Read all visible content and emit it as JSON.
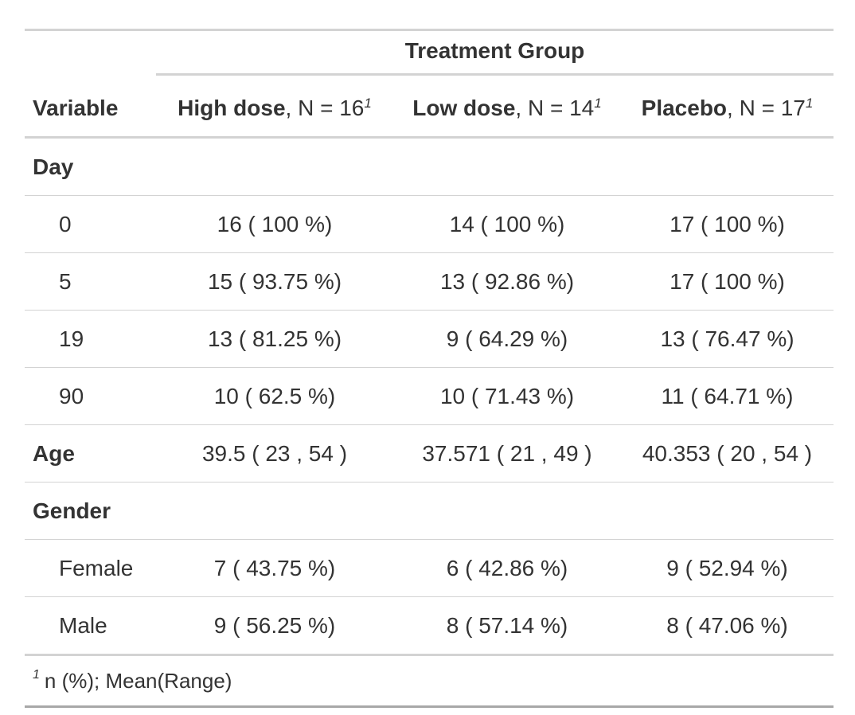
{
  "spanner": {
    "label": "Treatment Group"
  },
  "header": {
    "variable": "Variable",
    "columns": [
      {
        "name": "High dose",
        "n_text": ", N = 16",
        "footnote_mark": "1"
      },
      {
        "name": "Low dose",
        "n_text": ", N = 14",
        "footnote_mark": "1"
      },
      {
        "name": "Placebo",
        "n_text": ", N = 17",
        "footnote_mark": "1"
      }
    ]
  },
  "rows": [
    {
      "label": "Day",
      "group": true,
      "values": [
        "",
        "",
        ""
      ]
    },
    {
      "label": "0",
      "group": false,
      "values": [
        "16 ( 100 %)",
        "14 ( 100 %)",
        "17 ( 100 %)"
      ]
    },
    {
      "label": "5",
      "group": false,
      "values": [
        "15 ( 93.75 %)",
        "13 ( 92.86 %)",
        "17 ( 100 %)"
      ]
    },
    {
      "label": "19",
      "group": false,
      "values": [
        "13 ( 81.25 %)",
        "9 ( 64.29 %)",
        "13 ( 76.47 %)"
      ]
    },
    {
      "label": "90",
      "group": false,
      "values": [
        "10 ( 62.5 %)",
        "10 ( 71.43 %)",
        "11 ( 64.71 %)"
      ]
    },
    {
      "label": "Age",
      "group": true,
      "values": [
        "39.5 ( 23 , 54 )",
        "37.571 ( 21 , 49 )",
        "40.353 ( 20 , 54 )"
      ]
    },
    {
      "label": "Gender",
      "group": true,
      "values": [
        "",
        "",
        ""
      ]
    },
    {
      "label": "Female",
      "group": false,
      "values": [
        "7 ( 43.75 %)",
        "6 ( 42.86 %)",
        "9 ( 52.94 %)"
      ]
    },
    {
      "label": "Male",
      "group": false,
      "values": [
        "9 ( 56.25 %)",
        "8 ( 57.14 %)",
        "8 ( 47.06 %)"
      ]
    }
  ],
  "footnote": {
    "mark": "1",
    "text": "n (%); Mean(Range)"
  }
}
